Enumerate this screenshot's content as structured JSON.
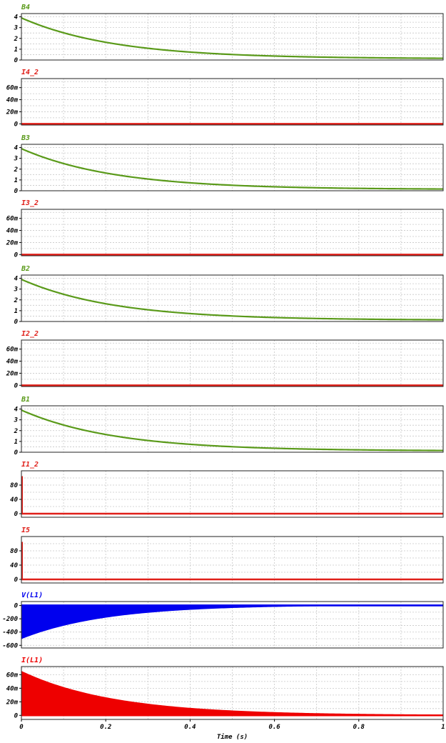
{
  "chart_data": {
    "type": "line",
    "xlabel": "Time (s)",
    "xlim": [
      0,
      1
    ],
    "xticks": [
      "0",
      "0.2",
      "0.4",
      "0.6",
      "0.8",
      "1"
    ],
    "panels": [
      {
        "title": "B4",
        "color": "#5a9a1a",
        "ylim": [
          0,
          4.3
        ],
        "yticks": [
          "4",
          "3",
          "2",
          "1",
          "0"
        ],
        "ytick_values": [
          4,
          3,
          2,
          1,
          0
        ],
        "series": {
          "kind": "decay",
          "y0": 3.9,
          "tau": 0.22,
          "floor": 0.12
        }
      },
      {
        "title": "I4_2",
        "color": "#e0201a",
        "ylim": [
          -2,
          75
        ],
        "yticks": [
          "60m",
          "40m",
          "20m",
          "0"
        ],
        "ytick_values": [
          60,
          40,
          20,
          0
        ],
        "series": {
          "kind": "flat",
          "value": 0
        }
      },
      {
        "title": "B3",
        "color": "#5a9a1a",
        "ylim": [
          0,
          4.3
        ],
        "yticks": [
          "4",
          "3",
          "2",
          "1",
          "0"
        ],
        "ytick_values": [
          4,
          3,
          2,
          1,
          0
        ],
        "series": {
          "kind": "decay",
          "y0": 3.9,
          "tau": 0.22,
          "floor": 0.12
        }
      },
      {
        "title": "I3_2",
        "color": "#e0201a",
        "ylim": [
          -2,
          75
        ],
        "yticks": [
          "60m",
          "40m",
          "20m",
          "0"
        ],
        "ytick_values": [
          60,
          40,
          20,
          0
        ],
        "series": {
          "kind": "flat",
          "value": 0
        }
      },
      {
        "title": "B2",
        "color": "#5a9a1a",
        "ylim": [
          0,
          4.3
        ],
        "yticks": [
          "4",
          "3",
          "2",
          "1",
          "0"
        ],
        "ytick_values": [
          4,
          3,
          2,
          1,
          0
        ],
        "series": {
          "kind": "decay",
          "y0": 3.9,
          "tau": 0.22,
          "floor": 0.12
        }
      },
      {
        "title": "I2_2",
        "color": "#e0201a",
        "ylim": [
          -2,
          75
        ],
        "yticks": [
          "60m",
          "40m",
          "20m",
          "0"
        ],
        "ytick_values": [
          60,
          40,
          20,
          0
        ],
        "series": {
          "kind": "flat",
          "value": 0
        }
      },
      {
        "title": "B1",
        "color": "#5a9a1a",
        "ylim": [
          0,
          4.3
        ],
        "yticks": [
          "4",
          "3",
          "2",
          "1",
          "0"
        ],
        "ytick_values": [
          4,
          3,
          2,
          1,
          0
        ],
        "series": {
          "kind": "decay",
          "y0": 3.9,
          "tau": 0.22,
          "floor": 0.12
        }
      },
      {
        "title": "I1_2",
        "color": "#e0201a",
        "ylim": [
          -10,
          120
        ],
        "yticks": [
          "80",
          "40",
          "0"
        ],
        "ytick_values": [
          80,
          40,
          0
        ],
        "series": {
          "kind": "spike",
          "value": 0,
          "peak": 105
        }
      },
      {
        "title": "I5",
        "color": "#e0201a",
        "ylim": [
          -10,
          120
        ],
        "yticks": [
          "80",
          "40",
          "0"
        ],
        "ytick_values": [
          80,
          40,
          0
        ],
        "series": {
          "kind": "spike",
          "value": 0,
          "peak": 105
        }
      },
      {
        "title": "V(L1)",
        "color": "#0000ee",
        "ylim": [
          -640,
          60
        ],
        "yticks": [
          "0",
          "-200",
          "-400",
          "-600"
        ],
        "ytick_values": [
          0,
          -200,
          -400,
          -600
        ],
        "series": {
          "kind": "envelope",
          "top": 10,
          "bottom0": -500,
          "tau": 0.2
        }
      },
      {
        "title": "I(L1)",
        "color": "#ee0000",
        "ylim": [
          -6,
          72
        ],
        "yticks": [
          "60m",
          "40m",
          "20m",
          "0"
        ],
        "ytick_values": [
          60,
          40,
          20,
          0
        ],
        "series": {
          "kind": "filled",
          "y0": 65,
          "tau": 0.22,
          "base": 0
        }
      }
    ]
  }
}
